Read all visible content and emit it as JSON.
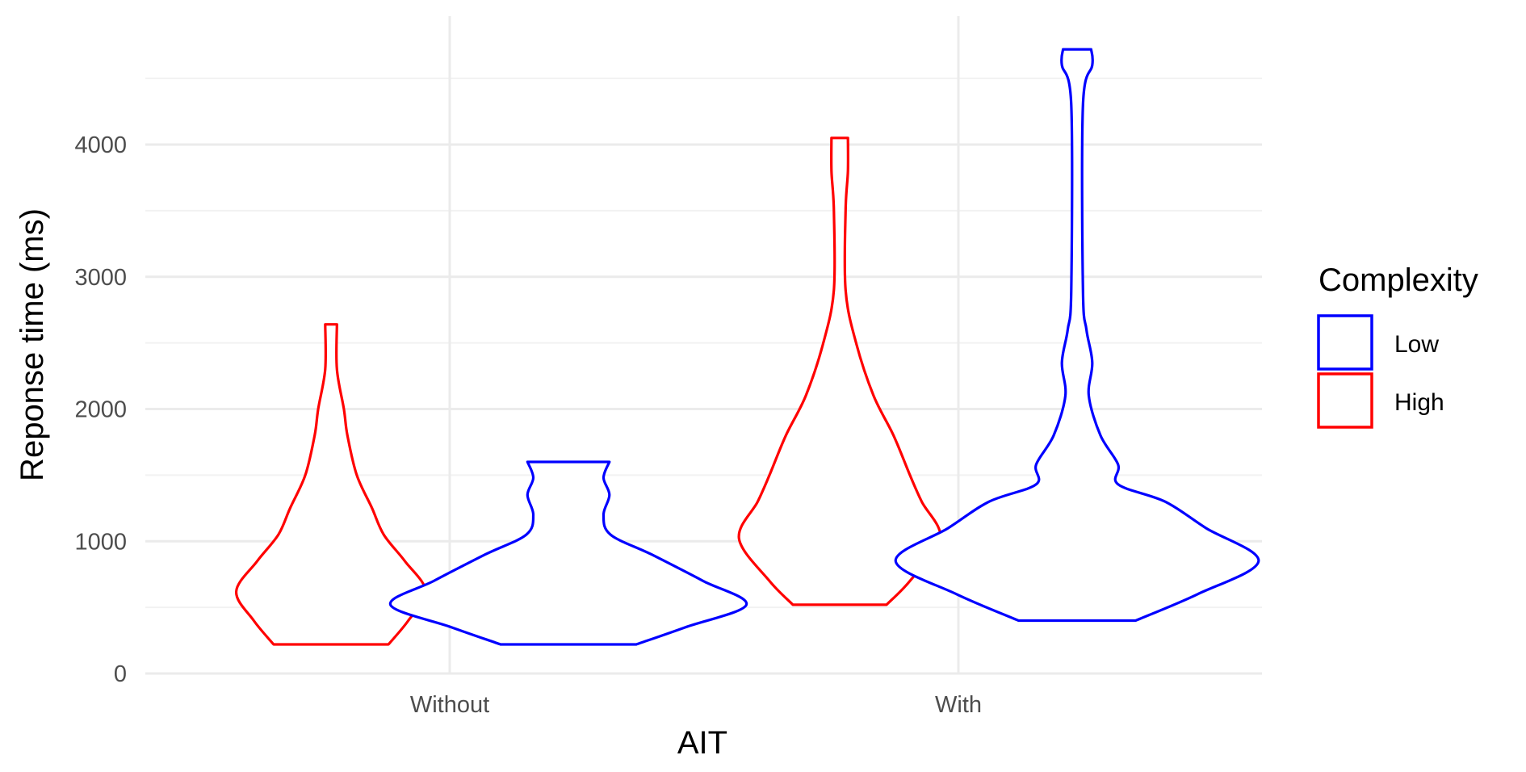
{
  "chart_data": {
    "type": "violin",
    "title": "",
    "xlabel": "AIT",
    "ylabel": "Reponse time (ms)",
    "categories": [
      "Without",
      "With"
    ],
    "ylim": [
      0,
      4950
    ],
    "yticks": [
      0,
      1000,
      2000,
      3000,
      4000
    ],
    "grid": true,
    "legend": {
      "title": "Complexity",
      "position": "right",
      "entries": [
        {
          "label": "Low",
          "color": "#0000ff"
        },
        {
          "label": "High",
          "color": "#ff0000"
        }
      ]
    },
    "series": [
      {
        "name": "High",
        "color": "#ff0000",
        "violins": [
          {
            "category": "Without",
            "min": 220,
            "max": 2640,
            "profile": [
              [
                220,
                0.49
              ],
              [
                400,
                0.66
              ],
              [
                620,
                0.81
              ],
              [
                850,
                0.63
              ],
              [
                1050,
                0.45
              ],
              [
                1250,
                0.35
              ],
              [
                1500,
                0.22
              ],
              [
                1800,
                0.14
              ],
              [
                2000,
                0.11
              ],
              [
                2300,
                0.05
              ],
              [
                2640,
                0.05
              ]
            ]
          },
          {
            "category": "With",
            "min": 520,
            "max": 4050,
            "profile": [
              [
                520,
                0.4
              ],
              [
                700,
                0.6
              ],
              [
                1020,
                0.86
              ],
              [
                1300,
                0.7
              ],
              [
                1500,
                0.6
              ],
              [
                1800,
                0.46
              ],
              [
                2100,
                0.29
              ],
              [
                2500,
                0.14
              ],
              [
                2900,
                0.05
              ],
              [
                3500,
                0.05
              ],
              [
                3800,
                0.07
              ],
              [
                4050,
                0.07
              ]
            ]
          }
        ]
      },
      {
        "name": "Low",
        "color": "#0000ff",
        "violins": [
          {
            "category": "Without",
            "min": 220,
            "max": 1600,
            "profile": [
              [
                220,
                0.58
              ],
              [
                350,
                1.0
              ],
              [
                520,
                1.52
              ],
              [
                700,
                1.15
              ],
              [
                900,
                0.71
              ],
              [
                1050,
                0.36
              ],
              [
                1200,
                0.3
              ],
              [
                1350,
                0.35
              ],
              [
                1480,
                0.3
              ],
              [
                1600,
                0.35
              ]
            ]
          },
          {
            "category": "With",
            "min": 400,
            "max": 4720,
            "profile": [
              [
                400,
                0.5
              ],
              [
                600,
                1.03
              ],
              [
                850,
                1.55
              ],
              [
                1100,
                1.1
              ],
              [
                1300,
                0.75
              ],
              [
                1430,
                0.35
              ],
              [
                1580,
                0.35
              ],
              [
                1800,
                0.2
              ],
              [
                2100,
                0.1
              ],
              [
                2350,
                0.13
              ],
              [
                2600,
                0.08
              ],
              [
                2900,
                0.05
              ],
              [
                4300,
                0.05
              ],
              [
                4600,
                0.13
              ],
              [
                4720,
                0.12
              ]
            ]
          }
        ]
      }
    ]
  }
}
